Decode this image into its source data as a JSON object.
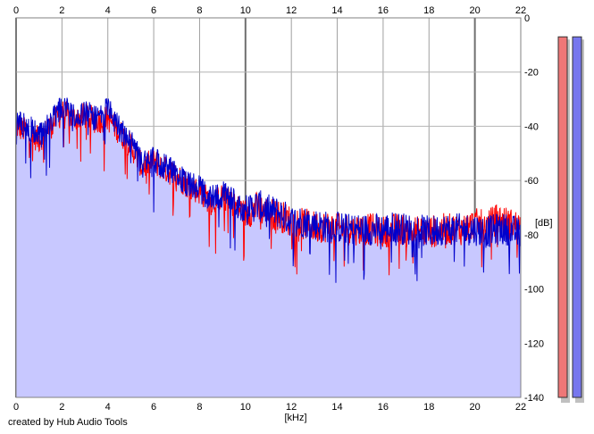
{
  "chart_data": {
    "type": "area",
    "title": "",
    "xlabel": "[kHz]",
    "ylabel": "[dB]",
    "xlim": [
      0,
      22
    ],
    "ylim": [
      -140,
      0
    ],
    "x_ticks": [
      0,
      2,
      4,
      6,
      8,
      10,
      12,
      14,
      16,
      18,
      20,
      22
    ],
    "y_ticks": [
      0,
      -20,
      -40,
      -60,
      -80,
      -100,
      -120,
      -140
    ],
    "grid": true,
    "legend": "none",
    "series": [
      {
        "color": "#ff0000",
        "x": [
          0,
          0.5,
          1,
          1.5,
          2,
          2.5,
          3,
          3.5,
          4,
          4.5,
          5,
          5.5,
          6,
          6.5,
          7,
          7.5,
          8,
          8.5,
          9,
          9.5,
          10,
          10.5,
          11,
          11.5,
          12,
          12.5,
          13,
          13.5,
          14,
          14.5,
          15,
          15.5,
          16,
          16.5,
          17,
          17.5,
          18,
          18.5,
          19,
          19.5,
          20,
          20.5,
          21,
          21.5,
          22
        ],
        "values": [
          -40,
          -42,
          -45,
          -40,
          -35,
          -37,
          -36,
          -38,
          -37,
          -42,
          -47,
          -55,
          -53,
          -56,
          -58,
          -62,
          -64,
          -68,
          -66,
          -69,
          -72,
          -70,
          -72,
          -73,
          -75,
          -76,
          -77,
          -77,
          -78,
          -78,
          -78,
          -78,
          -79,
          -78,
          -78,
          -79,
          -79,
          -78,
          -78,
          -78,
          -76,
          -77,
          -74,
          -76,
          -77
        ]
      },
      {
        "color": "#0000cc",
        "x": [
          0,
          0.5,
          1,
          1.5,
          2,
          2.5,
          3,
          3.5,
          4,
          4.5,
          5,
          5.5,
          6,
          6.5,
          7,
          7.5,
          8,
          8.5,
          9,
          9.5,
          10,
          10.5,
          11,
          11.5,
          12,
          12.5,
          13,
          13.5,
          14,
          14.5,
          15,
          15.5,
          16,
          16.5,
          17,
          17.5,
          18,
          18.5,
          19,
          19.5,
          20,
          20.5,
          21,
          21.5,
          22
        ],
        "values": [
          -39,
          -40,
          -44,
          -39,
          -33,
          -36,
          -35,
          -37,
          -34,
          -41,
          -46,
          -54,
          -52,
          -55,
          -58,
          -61,
          -63,
          -67,
          -65,
          -68,
          -71,
          -69,
          -71,
          -72,
          -75,
          -75,
          -76,
          -77,
          -77,
          -78,
          -78,
          -78,
          -78,
          -77,
          -78,
          -78,
          -79,
          -78,
          -78,
          -78,
          -78,
          -79,
          -78,
          -78,
          -80
        ]
      }
    ],
    "level_meters": [
      {
        "color": "#ee7777",
        "level_db": -7
      },
      {
        "color": "#7777ee",
        "level_db": -7
      }
    ],
    "fill_color": "#c8c8ff"
  },
  "footer": {
    "credit": "created by Hub Audio Tools"
  }
}
